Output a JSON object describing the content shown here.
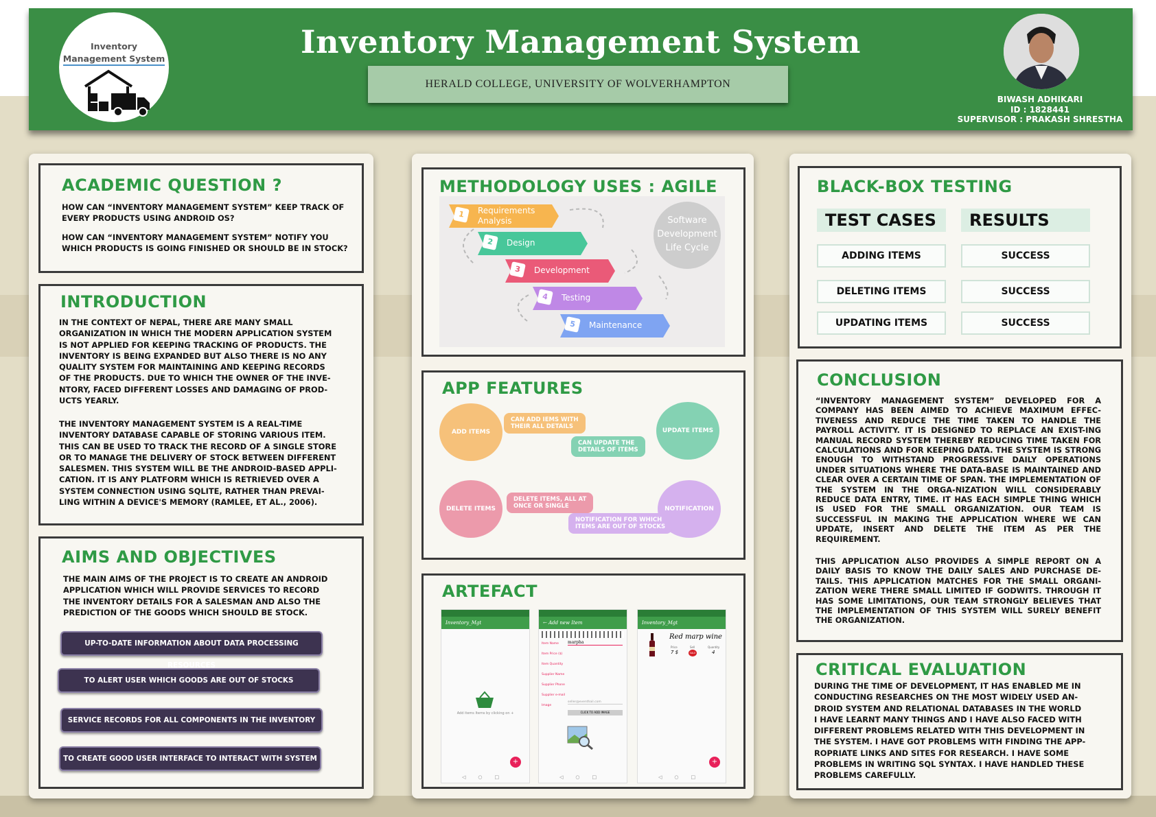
{
  "header": {
    "logo_line1": "Inventory",
    "logo_line2": "Management System",
    "title": "Inventory Management System",
    "college": "HERALD COLLEGE, UNIVERSITY OF WOLVERHAMPTON",
    "author_name": "BIWASH ADHIKARI",
    "author_id": "ID : 1828441",
    "supervisor": "SUPERVISOR : PRAKASH SHRESTHA"
  },
  "academic": {
    "heading": "ACADEMIC QUESTION ?",
    "q1": "HOW CAN “INVENTORY MANAGEMENT SYSTEM” KEEP TRACK OF\nEVERY PRODUCTS USING ANDROID OS?",
    "q2": "HOW CAN “INVENTORY MANAGEMENT SYSTEM” NOTIFY YOU\nWHICH PRODUCTS IS GOING FINISHED OR SHOULD BE IN STOCK?"
  },
  "introduction": {
    "heading": "INTRODUCTION",
    "p1": "IN THE CONTEXT OF NEPAL, THERE ARE MANY SMALL\nORGANIZATION IN WHICH THE MODERN APPLICATION SYSTEM\n IS NOT APPLIED FOR KEEPING TRACKING OF PRODUCTS. THE\n INVENTORY IS BEING EXPANDED BUT ALSO THERE IS NO ANY\nQUALITY SYSTEM FOR MAINTAINING AND KEEPING RECORDS\nOF THE PRODUCTS. DUE TO WHICH THE OWNER OF THE INVE-\nNTORY, FACED DIFFERENT LOSSES AND DAMAGING OF PROD-\nUCTS YEARLY.",
    "p2": "THE INVENTORY MANAGEMENT SYSTEM IS A REAL-TIME\nINVENTORY DATABASE CAPABLE OF STORING VARIOUS ITEM.\nTHIS CAN BE USED TO TRACK THE RECORD OF A SINGLE STORE\nOR TO MANAGE THE DELIVERY OF STOCK BETWEEN DIFFERENT\nSALESMEN. THIS SYSTEM WILL BE THE ANDROID-BASED APPLI-\nCATION. IT IS ANY PLATFORM WHICH IS RETRIEVED OVER A\nSYSTEM CONNECTION USING SQLITE, RATHER THAN PREVAI-\nLING WITHIN A DEVICE'S MEMORY (RAMLEE, ET AL., 2006)."
  },
  "aims": {
    "heading": "AIMS AND OBJECTIVES",
    "text": "THE MAIN AIMS OF THE PROJECT IS TO CREATE AN ANDROID\nAPPLICATION WHICH WILL PROVIDE SERVICES TO RECORD\nTHE INVENTORY DETAILS FOR A SALESMAN AND ALSO THE\nPREDICTION OF THE GOODS WHICH SHOULD BE STOCK.",
    "items": [
      "UP-TO-DATE INFORMATION ABOUT DATA PROCESSING RESOURCES",
      "TO ALERT USER WHICH GOODS ARE OUT OF STOCKS",
      "SERVICE RECORDS FOR ALL COMPONENTS IN THE INVENTORY",
      "TO CREATE GOOD USER INTERFACE TO INTERACT WITH SYSTEM"
    ]
  },
  "methodology": {
    "heading": "METHODOLOGY USES : AGILE",
    "cycle_label": "Software\nDevelopment\nLife Cycle",
    "steps": [
      {
        "num": "1",
        "label": "Requirements\nAnalysis",
        "color": "#f7b54f"
      },
      {
        "num": "2",
        "label": "Design",
        "color": "#48c79a"
      },
      {
        "num": "3",
        "label": "Development",
        "color": "#ea5a78"
      },
      {
        "num": "4",
        "label": "Testing",
        "color": "#bf88e6"
      },
      {
        "num": "5",
        "label": "Maintenance",
        "color": "#7fa4f2"
      }
    ]
  },
  "features": {
    "heading": "APP FEATURES",
    "add": "ADD ITEMS",
    "update": "UPDATE ITEMS",
    "delete": "DELETE ITEMS",
    "notification": "NOTIFICATION",
    "add_desc": "CAN ADD IEMS WITH\nTHEIR ALL DETAILS",
    "update_desc": "CAN UPDATE THE\nDETAILS OF ITEMS",
    "delete_desc": "DELETE ITEMS, ALL AT\nONCE OR SINGLE",
    "notify_desc": "NOTIFICATION FOR WHICH\nITEMS ARE OUT OF STOCKS"
  },
  "artefact": {
    "heading": "ARTEFACT",
    "screen1_title": "Inventory_Mgt",
    "screen1_hint": "Add items Items by clicking on +",
    "screen2_title": "Add new Item",
    "screen2_value": "marpha",
    "screen2_fields": [
      "Item Name",
      "Item Price ($)",
      "Item Quantity",
      "Supplier Name",
      "Supplier Phone",
      "Supplier e-mail"
    ],
    "screen2_email": "seller@eventhail.com",
    "screen2_image_label": "Image",
    "screen2_button": "CLICK TO ADD IMAGE",
    "screen3_title": "Inventory_Mgt",
    "product_name": "Red marp wine",
    "price_label": "Price",
    "price_value": "7 $",
    "sell_label": "Sell",
    "sale_badge": "SALE",
    "qty_label": "Quantity",
    "qty_value": "4"
  },
  "testing": {
    "heading": "BLACK-BOX TESTING",
    "col1": "TEST CASES",
    "col2": "RESULTS",
    "rows": [
      {
        "case": "ADDING ITEMS",
        "result": "SUCCESS"
      },
      {
        "case": "DELETING ITEMS",
        "result": "SUCCESS"
      },
      {
        "case": "UPDATING ITEMS",
        "result": "SUCCESS"
      }
    ]
  },
  "conclusion": {
    "heading": "CONCLUSION",
    "p1": "“INVENTORY MANAGEMENT SYSTEM” DEVELOPED FOR A COMPANY HAS BEEN AIMED TO ACHIEVE MAXIMUM EFFEC-TIVENESS AND REDUCE THE TIME TAKEN TO HANDLE THE PAYROLL ACTIVITY. IT IS DESIGNED TO REPLACE AN EXIST-ING MANUAL RECORD SYSTEM THEREBY REDUCING TIME TAKEN FOR CALCULATIONS AND FOR KEEPING DATA. THE SYSTEM IS STRONG ENOUGH TO WITHSTAND PROGRESSIVE DAILY OPERATIONS UNDER SITUATIONS WHERE THE DATA-BASE IS MAINTAINED AND CLEAR OVER A CERTAIN TIME OF SPAN. THE IMPLEMENTATION OF THE SYSTEM IN THE ORGA-NIZATION WILL CONSIDERABLY REDUCE DATA ENTRY, TIME. IT HAS EACH SIMPLE THING WHICH IS USED FOR THE SMALL ORGANIZATION. OUR TEAM IS SUCCESSFUL IN MAKING THE APPLICATION WHERE WE CAN UPDATE, INSERT AND DELETE THE ITEM AS PER THE REQUIREMENT.",
    "p2": "THIS APPLICATION ALSO PROVIDES A SIMPLE REPORT ON A DAILY BASIS TO KNOW THE DAILY SALES AND PURCHASE DE-TAILS. THIS APPLICATION MATCHES FOR THE SMALL ORGANI-ZATION WERE THERE SMALL LIMITED IF GODWITS. THROUGH IT HAS SOME LIMITATIONS, OUR TEAM STRONGLY BELIEVES THAT THE IMPLEMENTATION OF THIS SYSTEM WILL SURELY BENEFIT THE ORGANIZATION."
  },
  "critical": {
    "heading": "CRITICAL EVALUATION",
    "text": "DURING THE TIME OF DEVELOPMENT, IT HAS ENABLED ME IN\nCONDUCTING RESEARCHES ON THE MOST WIDELY USED AN-\nDROID SYSTEM AND RELATIONAL DATABASES IN THE WORLD\nI HAVE LEARNT MANY THINGS AND I HAVE ALSO FACED WITH\nDIFFERENT PROBLEMS RELATED WITH THIS DEVELOPMENT IN\nTHE SYSTEM. I HAVE GOT PROBLEMS WITH FINDING THE APP-\nROPRIATE LINKS AND SITES FOR RESEARCH. I HAVE SOME\nPROBLEMS IN WRITING SQL SYNTAX. I HAVE HANDLED THESE\nPROBLEMS CAREFULLY."
  },
  "colors": {
    "header_green": "#3a8e45",
    "heading_green": "#2f9a45",
    "aim_purple": "#3d3350"
  }
}
